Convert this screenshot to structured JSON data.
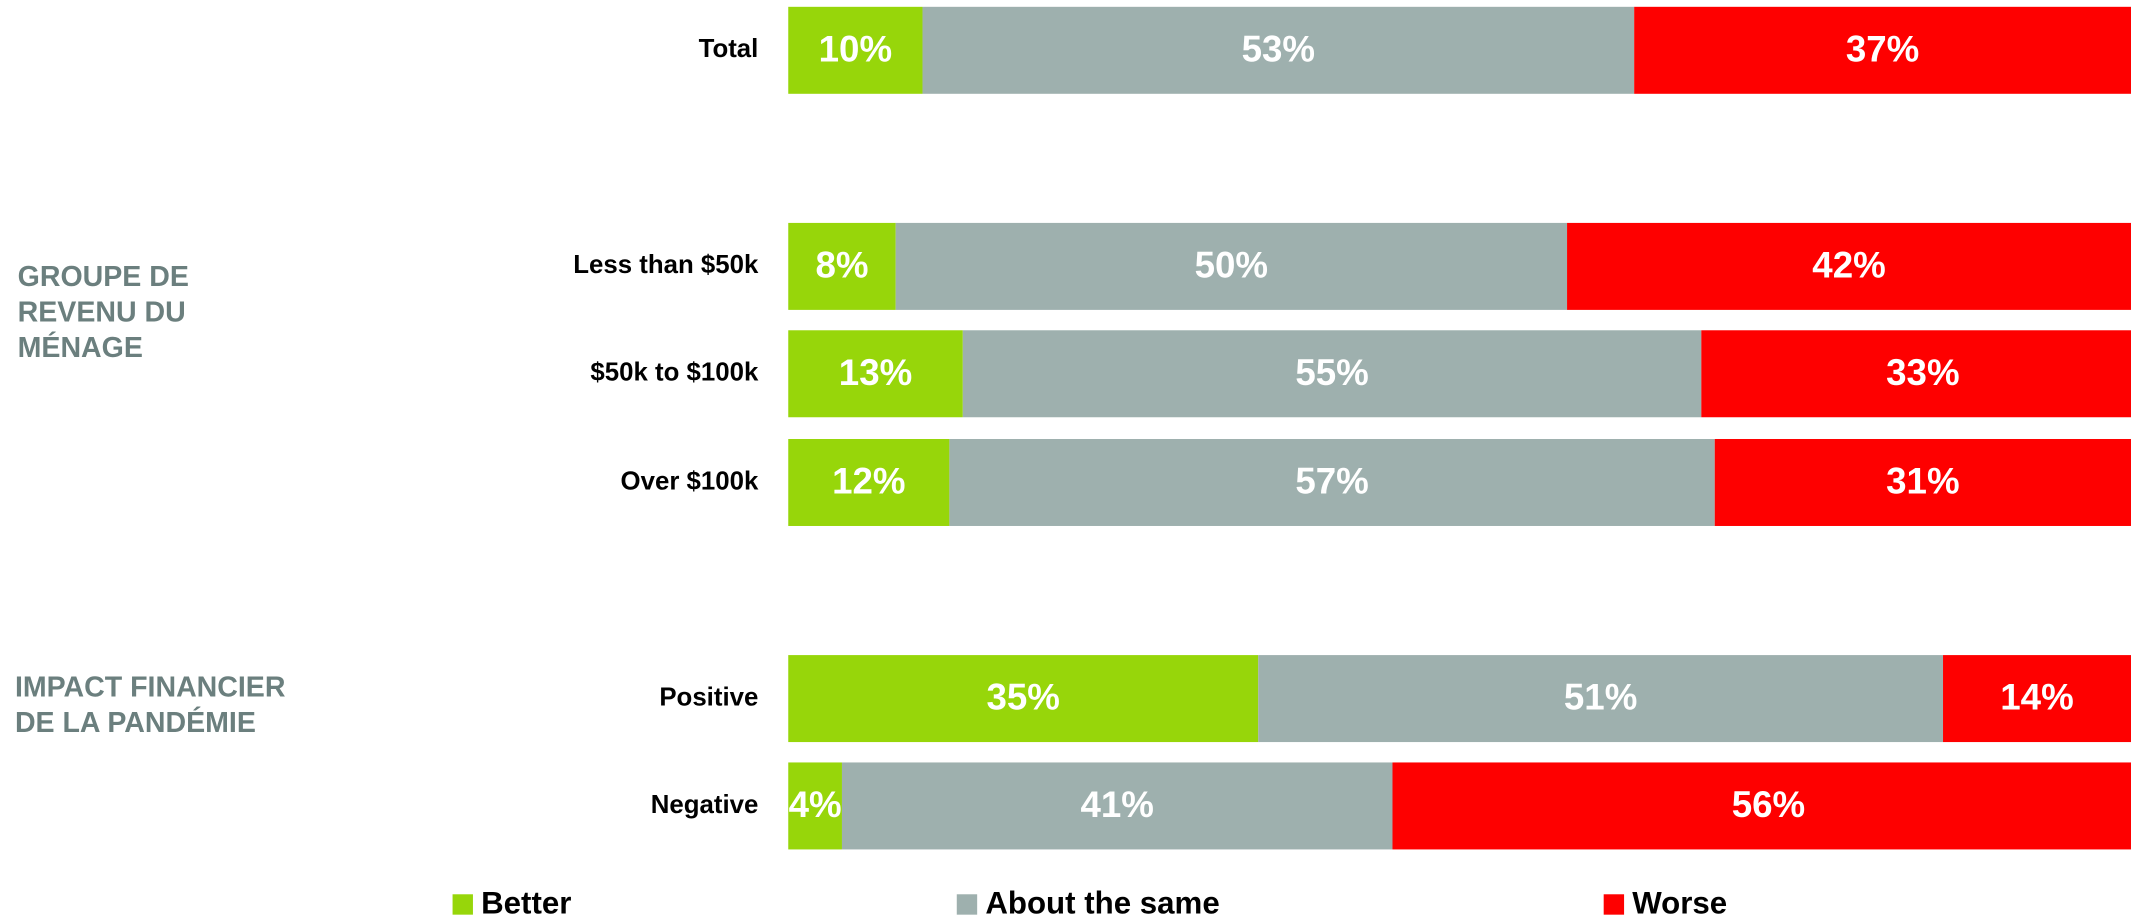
{
  "chart_data": {
    "type": "stacked-bar-horizontal",
    "categories": [
      "Total",
      "Less than $50k",
      "$50k to $100k",
      "Over $100k",
      "Positive",
      "Negative"
    ],
    "groups": [
      {
        "label": [
          "GROUPE DE",
          "REVENU DU",
          "MÉNAGE"
        ]
      },
      {
        "label": [
          "IMPACT FINANCIER",
          "DE LA PANDÉMIE"
        ]
      }
    ],
    "series": [
      {
        "name": "Better",
        "color": "#97d60a",
        "values": [
          10,
          8,
          13,
          12,
          35,
          4
        ],
        "value_labels": [
          "10%",
          "8%",
          "13%",
          "12%",
          "35%",
          "4%"
        ]
      },
      {
        "name": "About the same",
        "color": "#9eb0ae",
        "values": [
          53,
          50,
          55,
          57,
          51,
          41
        ],
        "value_labels": [
          "53%",
          "50%",
          "55%",
          "57%",
          "51%",
          "41%"
        ]
      },
      {
        "name": "Worse",
        "color": "#fe0000",
        "values": [
          37,
          42,
          33,
          31,
          14,
          56
        ],
        "value_labels": [
          "37%",
          "42%",
          "33%",
          "31%",
          "14%",
          "56%"
        ]
      }
    ],
    "xlim": [
      0,
      100
    ]
  }
}
